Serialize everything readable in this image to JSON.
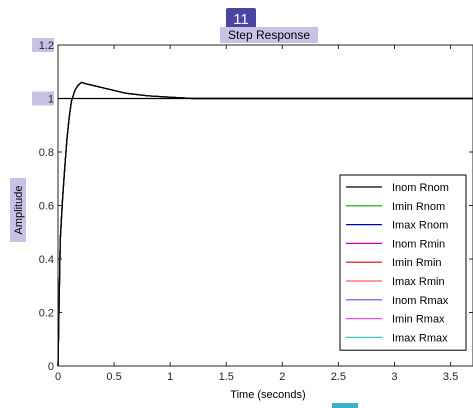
{
  "overlay": {
    "badge_number": "11"
  },
  "chart_data": {
    "type": "line",
    "title": "Step Response",
    "xlabel": "Time (seconds)",
    "ylabel": "Amplitude",
    "xlim": [
      0,
      3.7
    ],
    "ylim": [
      0,
      1.2
    ],
    "xticks": [
      "0",
      "0.5",
      "1",
      "1.5",
      "2",
      "2.5",
      "3",
      "3.5"
    ],
    "yticks": [
      "0",
      "0.2",
      "0.4",
      "0.6",
      "0.8",
      "1",
      "1.2"
    ],
    "grid": false,
    "legend_position": "bottom-right",
    "reference_line": {
      "y": 1,
      "color": "#000000"
    },
    "x": [
      0,
      0.02,
      0.04,
      0.06,
      0.08,
      0.1,
      0.12,
      0.15,
      0.18,
      0.21,
      0.25,
      0.3,
      0.4,
      0.5,
      0.6,
      0.8,
      1.0,
      1.2,
      1.5,
      2.0,
      3.0,
      3.7
    ],
    "series": [
      {
        "name": "Inom Rnom",
        "color": "#000000",
        "values": [
          0,
          0.47,
          0.62,
          0.74,
          0.85,
          0.93,
          0.99,
          1.03,
          1.05,
          1.06,
          1.055,
          1.05,
          1.04,
          1.03,
          1.02,
          1.01,
          1.005,
          1.0,
          1.0,
          1.0,
          1.0,
          1.0
        ]
      },
      {
        "name": "Imin Rnom",
        "color": "#00a000",
        "values": [
          0,
          0.47,
          0.62,
          0.74,
          0.85,
          0.93,
          0.99,
          1.03,
          1.05,
          1.06,
          1.055,
          1.05,
          1.04,
          1.03,
          1.02,
          1.01,
          1.005,
          1.0,
          1.0,
          1.0,
          1.0,
          1.0
        ]
      },
      {
        "name": "Imax Rnom",
        "color": "#0000bb",
        "values": [
          0,
          0.47,
          0.62,
          0.74,
          0.85,
          0.93,
          0.99,
          1.03,
          1.05,
          1.06,
          1.055,
          1.05,
          1.04,
          1.03,
          1.02,
          1.01,
          1.005,
          1.0,
          1.0,
          1.0,
          1.0,
          1.0
        ]
      },
      {
        "name": "Inom Rmin",
        "color": "#bb00bb",
        "values": [
          0,
          0.47,
          0.62,
          0.74,
          0.85,
          0.93,
          0.99,
          1.03,
          1.05,
          1.06,
          1.055,
          1.05,
          1.04,
          1.03,
          1.02,
          1.01,
          1.005,
          1.0,
          1.0,
          1.0,
          1.0,
          1.0
        ]
      },
      {
        "name": "Imin Rmin",
        "color": "#dd0000",
        "values": [
          0,
          0.47,
          0.62,
          0.74,
          0.85,
          0.93,
          0.99,
          1.03,
          1.05,
          1.06,
          1.055,
          1.05,
          1.04,
          1.03,
          1.02,
          1.01,
          1.005,
          1.0,
          1.0,
          1.0,
          1.0,
          1.0
        ]
      },
      {
        "name": "Imax Rmin",
        "color": "#ff6060",
        "values": [
          0,
          0.47,
          0.62,
          0.74,
          0.85,
          0.93,
          0.99,
          1.03,
          1.05,
          1.06,
          1.055,
          1.05,
          1.04,
          1.03,
          1.02,
          1.01,
          1.005,
          1.0,
          1.0,
          1.0,
          1.0,
          1.0
        ]
      },
      {
        "name": "Inom Rmax",
        "color": "#5555dd",
        "values": [
          0,
          0.47,
          0.62,
          0.74,
          0.85,
          0.93,
          0.99,
          1.03,
          1.05,
          1.06,
          1.055,
          1.05,
          1.04,
          1.03,
          1.02,
          1.01,
          1.005,
          1.0,
          1.0,
          1.0,
          1.0,
          1.0
        ]
      },
      {
        "name": "Imin Rmax",
        "color": "#dd55dd",
        "values": [
          0,
          0.47,
          0.62,
          0.74,
          0.85,
          0.93,
          0.99,
          1.03,
          1.05,
          1.06,
          1.055,
          1.05,
          1.04,
          1.03,
          1.02,
          1.01,
          1.005,
          1.0,
          1.0,
          1.0,
          1.0,
          1.0
        ]
      },
      {
        "name": "Imax Rmax",
        "color": "#33cccc",
        "values": [
          0,
          0.47,
          0.62,
          0.74,
          0.85,
          0.93,
          0.99,
          1.03,
          1.05,
          1.06,
          1.055,
          1.05,
          1.04,
          1.03,
          1.02,
          1.01,
          1.005,
          1.0,
          1.0,
          1.0,
          1.0,
          1.0
        ]
      }
    ]
  }
}
